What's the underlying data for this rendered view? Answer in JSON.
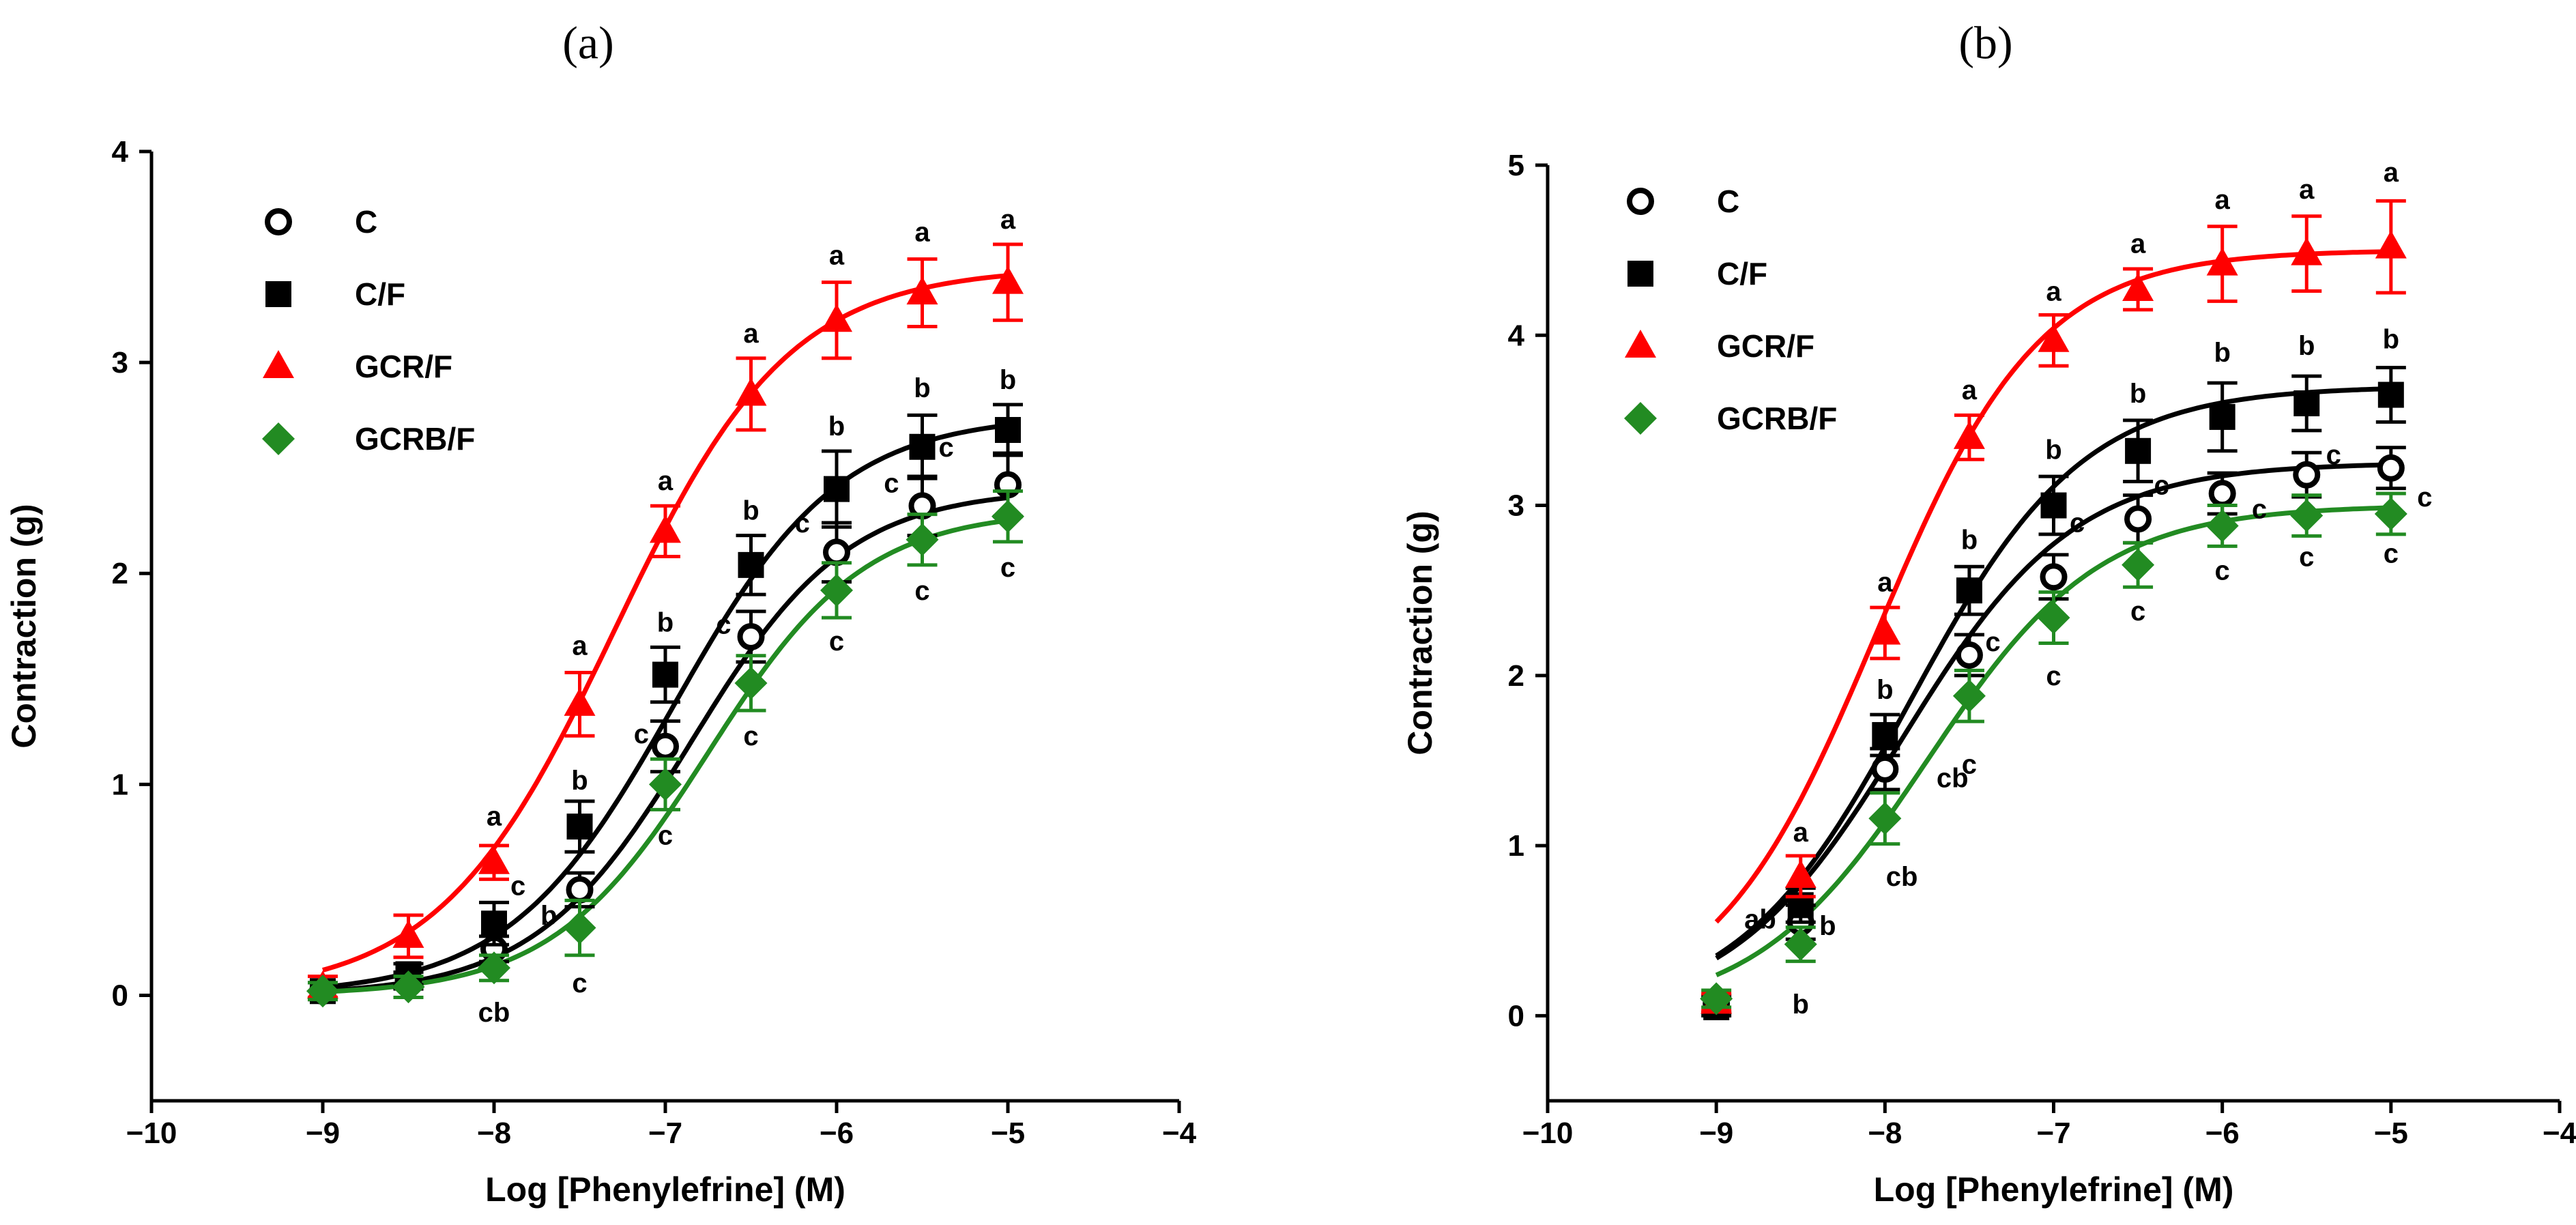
{
  "chart_data": [
    {
      "type": "line",
      "panel_label": "(a)",
      "xlabel": "Log [Phenylefrine] (M)",
      "ylabel": "Contraction (g)",
      "xlim": [
        -10,
        -4
      ],
      "ylim": [
        -0.5,
        4
      ],
      "xticks": [
        -10,
        -9,
        -8,
        -7,
        -6,
        -5,
        -4
      ],
      "yticks": [
        0,
        1,
        2,
        3,
        4
      ],
      "xtick_labels": [
        "−10",
        "−9",
        "−8",
        "−7",
        "−6",
        "−5",
        "−4"
      ],
      "ytick_labels": [
        "0",
        "1",
        "2",
        "3",
        "4"
      ],
      "legend": [
        "C",
        "C/F",
        "GCR/F",
        "GCRB/F"
      ],
      "legend_position": "top-left",
      "x": [
        -9,
        -8.5,
        -8,
        -7.5,
        -7,
        -6.5,
        -6,
        -5.5,
        -5
      ],
      "series": [
        {
          "name": "C",
          "color": "#000000",
          "marker": "open-circle",
          "values": [
            0.02,
            0.07,
            0.22,
            0.5,
            1.18,
            1.7,
            2.1,
            2.32,
            2.42
          ],
          "errors": [
            0.04,
            0.04,
            0.06,
            0.08,
            0.12,
            0.12,
            0.14,
            0.14,
            0.15
          ]
        },
        {
          "name": "C/F",
          "color": "#000000",
          "marker": "filled-square",
          "values": [
            0.02,
            0.1,
            0.34,
            0.8,
            1.52,
            2.04,
            2.4,
            2.6,
            2.68
          ],
          "errors": [
            0.04,
            0.05,
            0.1,
            0.12,
            0.13,
            0.14,
            0.18,
            0.15,
            0.12
          ]
        },
        {
          "name": "GCR/F",
          "color": "#ff0000",
          "marker": "filled-triangle",
          "values": [
            0.04,
            0.28,
            0.63,
            1.38,
            2.2,
            2.85,
            3.2,
            3.33,
            3.38
          ],
          "errors": [
            0.05,
            0.1,
            0.08,
            0.15,
            0.12,
            0.17,
            0.18,
            0.16,
            0.18
          ]
        },
        {
          "name": "GCRB/F",
          "color": "#228b22",
          "marker": "filled-diamond",
          "values": [
            0.02,
            0.04,
            0.13,
            0.32,
            1.0,
            1.48,
            1.92,
            2.16,
            2.27
          ],
          "errors": [
            0.04,
            0.05,
            0.06,
            0.13,
            0.12,
            0.13,
            0.13,
            0.12,
            0.12
          ]
        }
      ],
      "fit_params": [
        {
          "bottom": 0.0,
          "top": 2.4,
          "logec50": -6.85,
          "hill": 0.95
        },
        {
          "bottom": 0.0,
          "top": 2.75,
          "logec50": -6.95,
          "hill": 0.9
        },
        {
          "bottom": 0.0,
          "top": 3.45,
          "logec50": -7.3,
          "hill": 0.85
        },
        {
          "bottom": 0.0,
          "top": 2.3,
          "logec50": -6.75,
          "hill": 0.95
        }
      ],
      "sig_labels": [
        {
          "text": "a",
          "x": -8,
          "y": 0.85
        },
        {
          "text": "a",
          "x": -7.5,
          "y": 1.66
        },
        {
          "text": "a",
          "x": -7,
          "y": 2.44
        },
        {
          "text": "a",
          "x": -6.5,
          "y": 3.14
        },
        {
          "text": "a",
          "x": -6,
          "y": 3.51
        },
        {
          "text": "a",
          "x": -5.5,
          "y": 3.62
        },
        {
          "text": "a",
          "x": -5,
          "y": 3.68
        },
        {
          "text": "b",
          "x": -7.5,
          "y": 1.02
        },
        {
          "text": "b",
          "x": -7,
          "y": 1.77
        },
        {
          "text": "b",
          "x": -6.5,
          "y": 2.3
        },
        {
          "text": "b",
          "x": -6,
          "y": 2.7
        },
        {
          "text": "b",
          "x": -5.5,
          "y": 2.88
        },
        {
          "text": "b",
          "x": -5,
          "y": 2.92
        },
        {
          "text": "b",
          "x": -7.68,
          "y": 0.38
        },
        {
          "text": "c",
          "x": -7.86,
          "y": 0.52
        },
        {
          "text": "c",
          "x": -7.14,
          "y": 1.24
        },
        {
          "text": "c",
          "x": -6.66,
          "y": 1.76
        },
        {
          "text": "c",
          "x": -6.2,
          "y": 2.24
        },
        {
          "text": "c",
          "x": -5.68,
          "y": 2.43
        },
        {
          "text": "c",
          "x": -5.36,
          "y": 2.6
        },
        {
          "text": "c",
          "x": -7.5,
          "y": 0.06
        },
        {
          "text": "c",
          "x": -7,
          "y": 0.76
        },
        {
          "text": "c",
          "x": -6.5,
          "y": 1.23
        },
        {
          "text": "c",
          "x": -6,
          "y": 1.68
        },
        {
          "text": "c",
          "x": -5.5,
          "y": 1.92
        },
        {
          "text": "c",
          "x": -5,
          "y": 2.03
        },
        {
          "text": "cb",
          "x": -8,
          "y": -0.08
        }
      ]
    },
    {
      "type": "line",
      "panel_label": "(b)",
      "xlabel": "Log [Phenylefrine] (M)",
      "ylabel": "Contraction (g)",
      "xlim": [
        -10,
        -4
      ],
      "ylim": [
        -0.5,
        5
      ],
      "xticks": [
        -10,
        -9,
        -8,
        -7,
        -6,
        -5,
        -4
      ],
      "yticks": [
        0,
        1,
        2,
        3,
        4,
        5
      ],
      "xtick_labels": [
        "−10",
        "−9",
        "−8",
        "−7",
        "−6",
        "−5",
        "−4"
      ],
      "ytick_labels": [
        "0",
        "1",
        "2",
        "3",
        "4",
        "5"
      ],
      "legend": [
        "C",
        "C/F",
        "GCR/F",
        "GCRB/F"
      ],
      "legend_position": "top-left",
      "x": [
        -9,
        -8.5,
        -8,
        -7.5,
        -7,
        -6.5,
        -6,
        -5.5,
        -5
      ],
      "series": [
        {
          "name": "C",
          "color": "#000000",
          "marker": "open-circle",
          "values": [
            0.07,
            0.55,
            1.45,
            2.12,
            2.58,
            2.92,
            3.07,
            3.18,
            3.22
          ],
          "errors": [
            0.05,
            0.1,
            0.12,
            0.12,
            0.13,
            0.14,
            0.12,
            0.13,
            0.12
          ]
        },
        {
          "name": "C/F",
          "color": "#000000",
          "marker": "filled-square",
          "values": [
            0.05,
            0.65,
            1.65,
            2.5,
            3.0,
            3.32,
            3.52,
            3.6,
            3.65
          ],
          "errors": [
            0.05,
            0.1,
            0.12,
            0.14,
            0.17,
            0.18,
            0.2,
            0.16,
            0.16
          ]
        },
        {
          "name": "GCR/F",
          "color": "#ff0000",
          "marker": "filled-triangle",
          "values": [
            0.08,
            0.82,
            2.25,
            3.4,
            3.97,
            4.27,
            4.42,
            4.48,
            4.52
          ],
          "errors": [
            0.05,
            0.12,
            0.15,
            0.13,
            0.15,
            0.12,
            0.22,
            0.22,
            0.27
          ]
        },
        {
          "name": "GCRB/F",
          "color": "#228b22",
          "marker": "filled-diamond",
          "values": [
            0.1,
            0.42,
            1.16,
            1.88,
            2.34,
            2.65,
            2.88,
            2.94,
            2.95
          ],
          "errors": [
            0.05,
            0.1,
            0.15,
            0.15,
            0.15,
            0.13,
            0.12,
            0.12,
            0.12
          ]
        }
      ],
      "fit_params": [
        {
          "bottom": 0.0,
          "top": 3.25,
          "logec50": -7.9,
          "hill": 0.85
        },
        {
          "bottom": 0.0,
          "top": 3.7,
          "logec50": -7.85,
          "hill": 0.85
        },
        {
          "bottom": 0.0,
          "top": 4.5,
          "logec50": -8.05,
          "hill": 0.9
        },
        {
          "bottom": 0.0,
          "top": 3.0,
          "logec50": -7.75,
          "hill": 0.85
        }
      ],
      "sig_labels": [
        {
          "text": "a",
          "x": -8.5,
          "y": 1.08
        },
        {
          "text": "a",
          "x": -8,
          "y": 2.55
        },
        {
          "text": "a",
          "x": -7.5,
          "y": 3.68
        },
        {
          "text": "a",
          "x": -7,
          "y": 4.26
        },
        {
          "text": "a",
          "x": -6.5,
          "y": 4.54
        },
        {
          "text": "a",
          "x": -6,
          "y": 4.8
        },
        {
          "text": "a",
          "x": -5.5,
          "y": 4.86
        },
        {
          "text": "a",
          "x": -5,
          "y": 4.96
        },
        {
          "text": "b",
          "x": -8,
          "y": 1.92
        },
        {
          "text": "b",
          "x": -7.5,
          "y": 2.8
        },
        {
          "text": "b",
          "x": -7,
          "y": 3.33
        },
        {
          "text": "b",
          "x": -6.5,
          "y": 3.66
        },
        {
          "text": "b",
          "x": -6,
          "y": 3.9
        },
        {
          "text": "b",
          "x": -5.5,
          "y": 3.94
        },
        {
          "text": "b",
          "x": -5,
          "y": 3.98
        },
        {
          "text": "b",
          "x": -8.34,
          "y": 0.53
        },
        {
          "text": "c",
          "x": -7.36,
          "y": 2.2
        },
        {
          "text": "c",
          "x": -6.86,
          "y": 2.9
        },
        {
          "text": "c",
          "x": -6.36,
          "y": 3.12
        },
        {
          "text": "c",
          "x": -5.78,
          "y": 2.98
        },
        {
          "text": "c",
          "x": -5.34,
          "y": 3.3
        },
        {
          "text": "c",
          "x": -4.8,
          "y": 3.05
        },
        {
          "text": "c",
          "x": -7.5,
          "y": 1.48
        },
        {
          "text": "c",
          "x": -7,
          "y": 2.0
        },
        {
          "text": "c",
          "x": -6.5,
          "y": 2.38
        },
        {
          "text": "c",
          "x": -6,
          "y": 2.62
        },
        {
          "text": "c",
          "x": -5.5,
          "y": 2.7
        },
        {
          "text": "c",
          "x": -5,
          "y": 2.72
        },
        {
          "text": "ab",
          "x": -8.74,
          "y": 0.57
        },
        {
          "text": "b",
          "x": -8.5,
          "y": 0.07
        },
        {
          "text": "cb",
          "x": -7.6,
          "y": 1.4
        },
        {
          "text": "cb",
          "x": -7.9,
          "y": 0.82
        }
      ]
    }
  ]
}
